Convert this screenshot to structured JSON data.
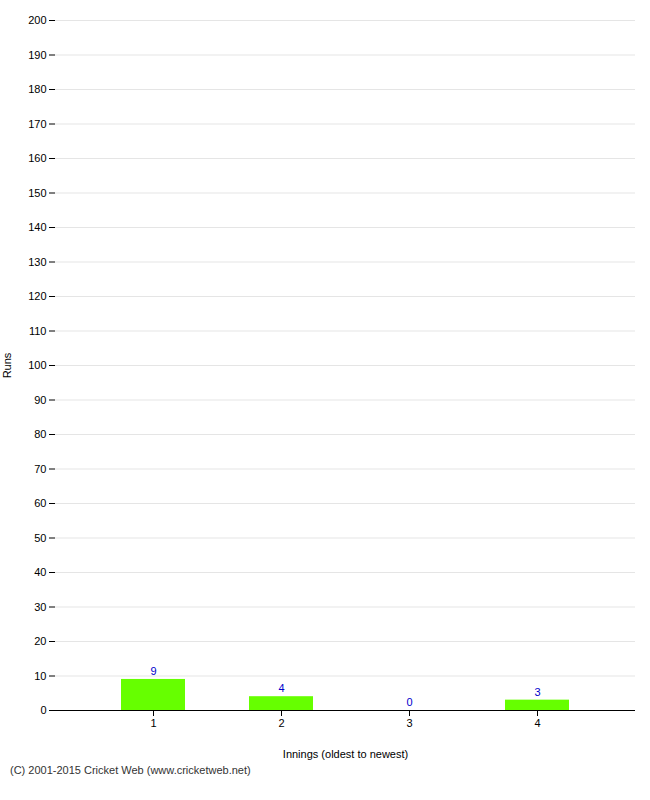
{
  "chart_data": {
    "type": "bar",
    "categories": [
      "1",
      "2",
      "3",
      "4"
    ],
    "values": [
      9,
      4,
      0,
      3
    ],
    "color": "#66ff00",
    "xlabel": "Innings (oldest to newest)",
    "ylabel": "Runs",
    "ylim": [
      0,
      200
    ],
    "yticks": [
      0,
      10,
      20,
      30,
      40,
      50,
      60,
      70,
      80,
      90,
      100,
      110,
      120,
      130,
      140,
      150,
      160,
      170,
      180,
      190,
      200
    ],
    "grid": true,
    "data_labels": true,
    "annotations": [
      "(C) 2001-2015 Cricket Web (www.cricketweb.net)"
    ]
  }
}
